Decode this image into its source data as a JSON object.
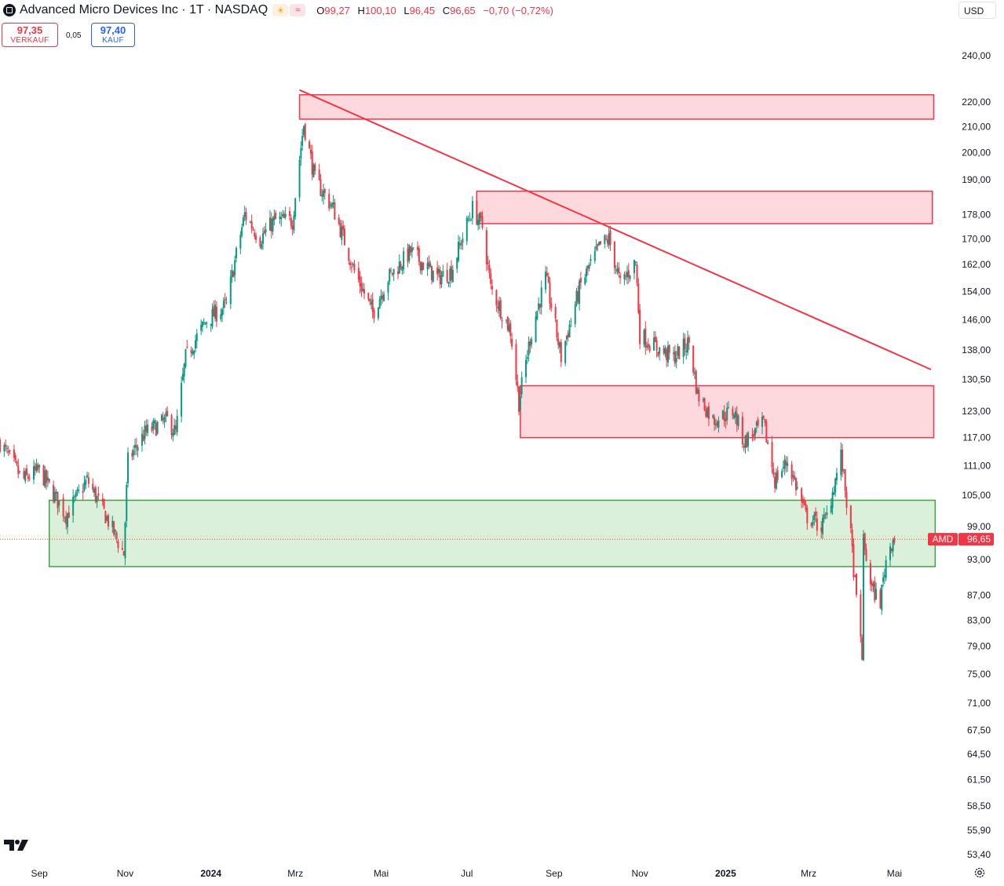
{
  "header": {
    "title": "Advanced Micro Devices Inc · 1T · NASDAQ",
    "ohlc": [
      {
        "label": "O",
        "value": "99,27"
      },
      {
        "label": "H",
        "value": "100,10"
      },
      {
        "label": "L",
        "value": "96,45"
      },
      {
        "label": "C",
        "value": "96,65"
      }
    ],
    "change": "−0,70 (−0,72%)",
    "icons": [
      "sun-icon",
      "wave-icon"
    ]
  },
  "trade": {
    "sell_price": "97,35",
    "sell_label": "VERKAUF",
    "spread": "0,05",
    "buy_price": "97,40",
    "buy_label": "KAUF"
  },
  "currency": "USD",
  "last_price": {
    "symbol": "AMD",
    "value": "96,65"
  },
  "colors": {
    "up": "#089981",
    "down": "#f23645",
    "resistance_fill": "#fdd9de",
    "support_fill": "#daf0da",
    "support_border": "#43a047"
  },
  "chart_data": {
    "type": "candlestick",
    "title": "Advanced Micro Devices Inc · 1T · NASDAQ",
    "scale": "log",
    "y_ticks": [
      {
        "value": 240,
        "label": "240,00"
      },
      {
        "value": 220,
        "label": "220,00"
      },
      {
        "value": 210,
        "label": "210,00"
      },
      {
        "value": 200,
        "label": "200,00"
      },
      {
        "value": 190,
        "label": "190,00"
      },
      {
        "value": 178,
        "label": "178,00"
      },
      {
        "value": 170,
        "label": "170,00"
      },
      {
        "value": 162,
        "label": "162,00"
      },
      {
        "value": 154,
        "label": "154,00"
      },
      {
        "value": 146,
        "label": "146,00"
      },
      {
        "value": 138,
        "label": "138,00"
      },
      {
        "value": 130.5,
        "label": "130,50"
      },
      {
        "value": 123,
        "label": "123,00"
      },
      {
        "value": 117,
        "label": "117,00"
      },
      {
        "value": 111,
        "label": "111,00"
      },
      {
        "value": 105,
        "label": "105,00"
      },
      {
        "value": 99,
        "label": "99,00"
      },
      {
        "value": 93,
        "label": "93,00"
      },
      {
        "value": 87,
        "label": "87,00"
      },
      {
        "value": 83,
        "label": "83,00"
      },
      {
        "value": 79,
        "label": "79,00"
      },
      {
        "value": 75,
        "label": "75,00"
      },
      {
        "value": 71,
        "label": "71,00"
      },
      {
        "value": 67.5,
        "label": "67,50"
      },
      {
        "value": 64.5,
        "label": "64,50"
      },
      {
        "value": 61.5,
        "label": "61,50"
      },
      {
        "value": 58.5,
        "label": "58,50"
      },
      {
        "value": 55.9,
        "label": "55,90"
      },
      {
        "value": 53.4,
        "label": "53,40"
      }
    ],
    "x_ticks": [
      {
        "date": "2023-09-01",
        "label": "Sep",
        "bold": false
      },
      {
        "date": "2023-11-01",
        "label": "Nov",
        "bold": false
      },
      {
        "date": "2024-01-01",
        "label": "2024",
        "bold": true
      },
      {
        "date": "2024-03-01",
        "label": "Mrz",
        "bold": false
      },
      {
        "date": "2024-05-01",
        "label": "Mai",
        "bold": false
      },
      {
        "date": "2024-07-01",
        "label": "Jul",
        "bold": false
      },
      {
        "date": "2024-09-01",
        "label": "Sep",
        "bold": false
      },
      {
        "date": "2024-11-01",
        "label": "Nov",
        "bold": false
      },
      {
        "date": "2025-01-01",
        "label": "2025",
        "bold": true
      },
      {
        "date": "2025-03-01",
        "label": "Mrz",
        "bold": false
      },
      {
        "date": "2025-05-01",
        "label": "Mai",
        "bold": false
      }
    ],
    "x_range": [
      "2023-08-04",
      "2025-06-15"
    ],
    "price_path": [
      {
        "date": "2023-08-04",
        "close": 116
      },
      {
        "date": "2023-08-20",
        "close": 108
      },
      {
        "date": "2023-09-01",
        "close": 110
      },
      {
        "date": "2023-09-20",
        "close": 101
      },
      {
        "date": "2023-10-05",
        "close": 108
      },
      {
        "date": "2023-10-20",
        "close": 100
      },
      {
        "date": "2023-10-31",
        "close": 94
      },
      {
        "date": "2023-11-03",
        "close": 112
      },
      {
        "date": "2023-11-15",
        "close": 118
      },
      {
        "date": "2023-12-01",
        "close": 121
      },
      {
        "date": "2023-12-07",
        "close": 118
      },
      {
        "date": "2023-12-14",
        "close": 136
      },
      {
        "date": "2023-12-29",
        "close": 146
      },
      {
        "date": "2024-01-12",
        "close": 150
      },
      {
        "date": "2024-01-25",
        "close": 178
      },
      {
        "date": "2024-02-05",
        "close": 170
      },
      {
        "date": "2024-02-15",
        "close": 176
      },
      {
        "date": "2024-02-28",
        "close": 176
      },
      {
        "date": "2024-03-07",
        "close": 211
      },
      {
        "date": "2024-03-15",
        "close": 190
      },
      {
        "date": "2024-03-28",
        "close": 180
      },
      {
        "date": "2024-04-12",
        "close": 160
      },
      {
        "date": "2024-04-25",
        "close": 148
      },
      {
        "date": "2024-05-06",
        "close": 158
      },
      {
        "date": "2024-05-22",
        "close": 166
      },
      {
        "date": "2024-06-10",
        "close": 158
      },
      {
        "date": "2024-06-20",
        "close": 160
      },
      {
        "date": "2024-07-05",
        "close": 180
      },
      {
        "date": "2024-07-12",
        "close": 174
      },
      {
        "date": "2024-07-18",
        "close": 155
      },
      {
        "date": "2024-08-01",
        "close": 143
      },
      {
        "date": "2024-08-07",
        "close": 125
      },
      {
        "date": "2024-08-15",
        "close": 141
      },
      {
        "date": "2024-08-26",
        "close": 158
      },
      {
        "date": "2024-09-06",
        "close": 136
      },
      {
        "date": "2024-09-20",
        "close": 156
      },
      {
        "date": "2024-10-04",
        "close": 168
      },
      {
        "date": "2024-10-10",
        "close": 170
      },
      {
        "date": "2024-10-18",
        "close": 156
      },
      {
        "date": "2024-10-29",
        "close": 163
      },
      {
        "date": "2024-11-01",
        "close": 142
      },
      {
        "date": "2024-11-15",
        "close": 138
      },
      {
        "date": "2024-11-25",
        "close": 136
      },
      {
        "date": "2024-12-06",
        "close": 140
      },
      {
        "date": "2024-12-12",
        "close": 127
      },
      {
        "date": "2024-12-23",
        "close": 121
      },
      {
        "date": "2025-01-07",
        "close": 123
      },
      {
        "date": "2025-01-14",
        "close": 116
      },
      {
        "date": "2025-01-28",
        "close": 120
      },
      {
        "date": "2025-02-05",
        "close": 108
      },
      {
        "date": "2025-02-14",
        "close": 112
      },
      {
        "date": "2025-02-27",
        "close": 101
      },
      {
        "date": "2025-03-10",
        "close": 99
      },
      {
        "date": "2025-03-14",
        "close": 101
      },
      {
        "date": "2025-03-24",
        "close": 113
      },
      {
        "date": "2025-03-31",
        "close": 97
      },
      {
        "date": "2025-04-04",
        "close": 86
      },
      {
        "date": "2025-04-08",
        "close": 78
      },
      {
        "date": "2025-04-09",
        "close": 96
      },
      {
        "date": "2025-04-15",
        "close": 88
      },
      {
        "date": "2025-04-21",
        "close": 86
      },
      {
        "date": "2025-04-25",
        "close": 93
      },
      {
        "date": "2025-04-30",
        "close": 97
      },
      {
        "date": "2025-05-02",
        "close": 96.65
      }
    ],
    "zones": [
      {
        "name": "resistance-zone-top",
        "kind": "resistance",
        "start": "2024-03-04",
        "end": "2025-05-29",
        "low": 213,
        "high": 223
      },
      {
        "name": "resistance-zone-mid",
        "kind": "resistance",
        "start": "2024-07-08",
        "end": "2025-05-28",
        "low": 175,
        "high": 186
      },
      {
        "name": "resistance-zone-low",
        "kind": "resistance",
        "start": "2024-08-08",
        "end": "2025-05-29",
        "low": 117,
        "high": 129
      },
      {
        "name": "support-zone",
        "kind": "support",
        "start": "2023-09-08",
        "end": "2025-05-30",
        "low": 91.8,
        "high": 104
      }
    ],
    "trendline": {
      "start_date": "2024-03-04",
      "start_value": 225,
      "end_date": "2025-05-27",
      "end_value": 133
    },
    "last_value": 96.65
  }
}
